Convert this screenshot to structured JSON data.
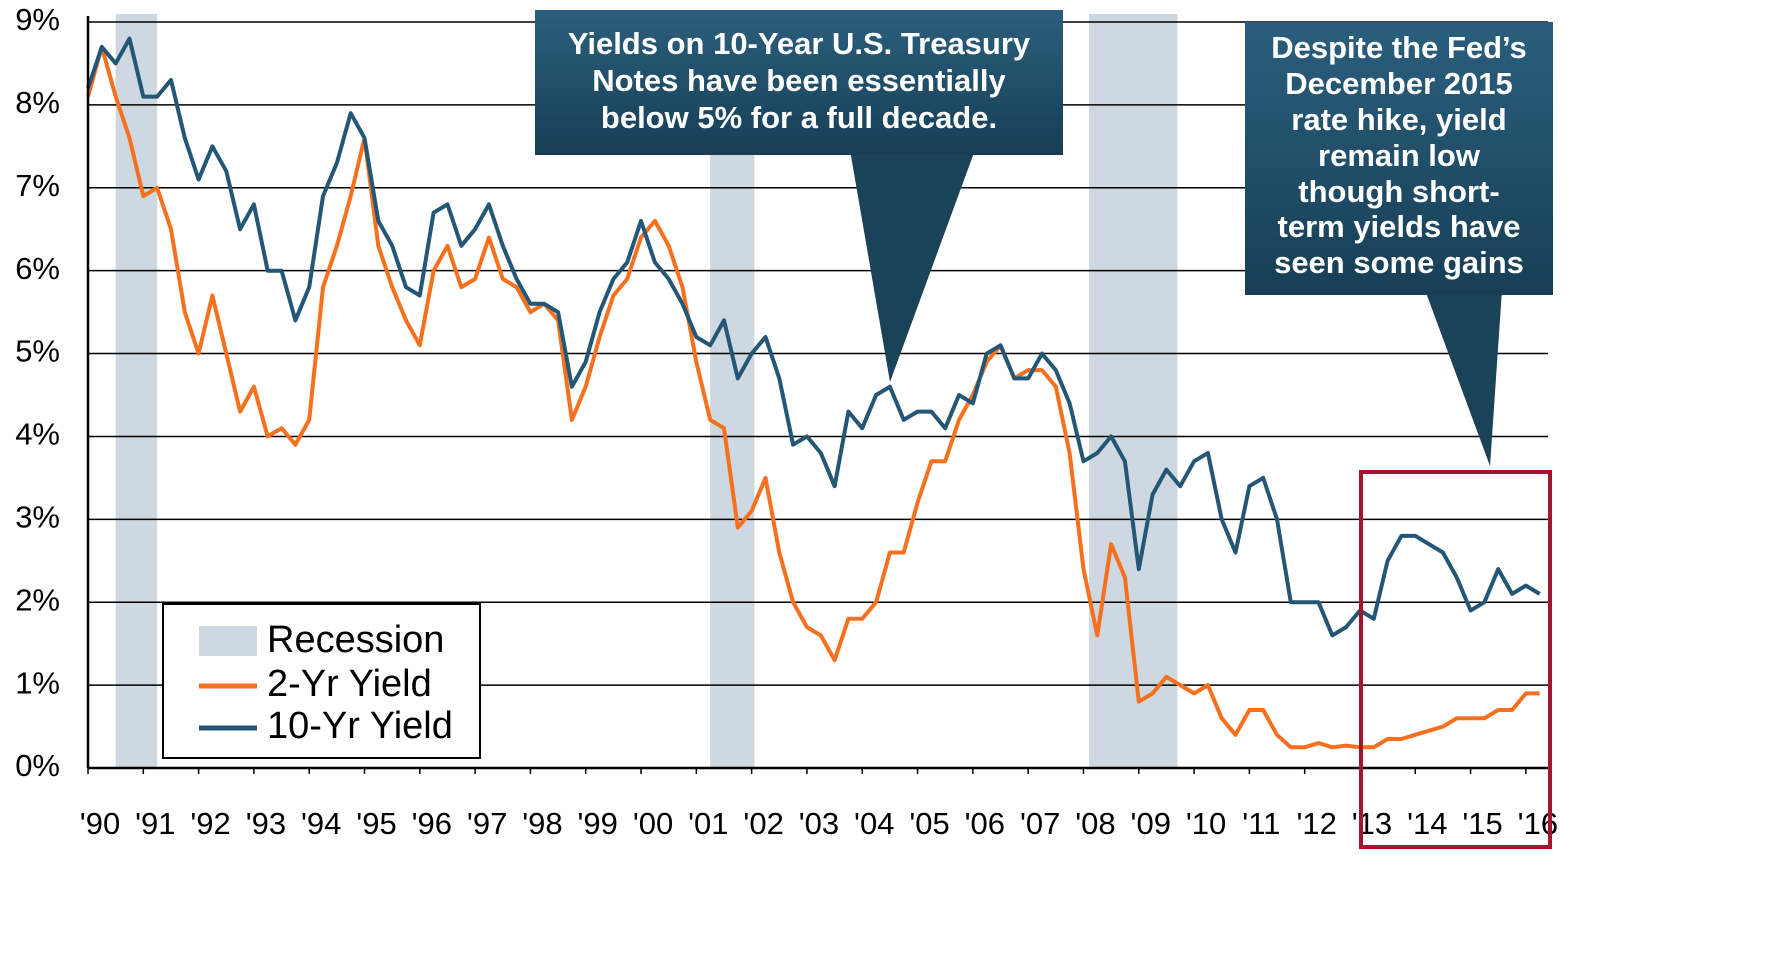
{
  "chart_data": {
    "type": "line",
    "recession_name": "Recession",
    "recessions": [
      [
        1990.5,
        1991.25
      ],
      [
        2001.25,
        2002.05
      ],
      [
        2008.1,
        2009.7
      ]
    ],
    "recession_color": "#cdd8e0",
    "x": [
      1990,
      1990.25,
      1990.5,
      1990.75,
      1991,
      1991.25,
      1991.5,
      1991.75,
      1992,
      1992.25,
      1992.5,
      1992.75,
      1993,
      1993.25,
      1993.5,
      1993.75,
      1994,
      1994.25,
      1994.5,
      1994.75,
      1995,
      1995.25,
      1995.5,
      1995.75,
      1996,
      1996.25,
      1996.5,
      1996.75,
      1997,
      1997.25,
      1997.5,
      1997.75,
      1998,
      1998.25,
      1998.5,
      1998.75,
      1999,
      1999.25,
      1999.5,
      1999.75,
      2000,
      2000.25,
      2000.5,
      2000.75,
      2001,
      2001.25,
      2001.5,
      2001.75,
      2002,
      2002.25,
      2002.5,
      2002.75,
      2003,
      2003.25,
      2003.5,
      2003.75,
      2004,
      2004.25,
      2004.5,
      2004.75,
      2005,
      2005.25,
      2005.5,
      2005.75,
      2006,
      2006.25,
      2006.5,
      2006.75,
      2007,
      2007.25,
      2007.5,
      2007.75,
      2008,
      2008.25,
      2008.5,
      2008.75,
      2009,
      2009.25,
      2009.5,
      2009.75,
      2010,
      2010.25,
      2010.5,
      2010.75,
      2011,
      2011.25,
      2011.5,
      2011.75,
      2012,
      2012.25,
      2012.5,
      2012.75,
      2013,
      2013.25,
      2013.5,
      2013.75,
      2014,
      2014.25,
      2014.5,
      2014.75,
      2015,
      2015.25,
      2015.5,
      2015.75,
      2016,
      2016.25
    ],
    "series": [
      {
        "name": "2-Yr Yield",
        "color": "#f7701e",
        "values": [
          8.1,
          8.7,
          8.1,
          7.6,
          6.9,
          7.0,
          6.5,
          5.5,
          5.0,
          5.7,
          5.0,
          4.3,
          4.6,
          4.0,
          4.1,
          3.9,
          4.2,
          5.8,
          6.3,
          6.9,
          7.6,
          6.3,
          5.8,
          5.4,
          5.1,
          6.0,
          6.3,
          5.8,
          5.9,
          6.4,
          5.9,
          5.8,
          5.5,
          5.6,
          5.4,
          4.2,
          4.6,
          5.2,
          5.7,
          5.9,
          6.4,
          6.6,
          6.3,
          5.8,
          4.9,
          4.2,
          4.1,
          2.9,
          3.1,
          3.5,
          2.6,
          2.0,
          1.7,
          1.6,
          1.3,
          1.8,
          1.8,
          2.0,
          2.6,
          2.6,
          3.2,
          3.7,
          3.7,
          4.2,
          4.5,
          4.9,
          5.1,
          4.7,
          4.8,
          4.8,
          4.6,
          3.8,
          2.4,
          1.6,
          2.7,
          2.3,
          0.8,
          0.9,
          1.1,
          1.0,
          0.9,
          1.0,
          0.6,
          0.4,
          0.7,
          0.7,
          0.4,
          0.25,
          0.25,
          0.3,
          0.25,
          0.27,
          0.25,
          0.25,
          0.35,
          0.35,
          0.4,
          0.45,
          0.5,
          0.6,
          0.6,
          0.6,
          0.7,
          0.7,
          0.9,
          0.9
        ]
      },
      {
        "name": "10-Yr Yield",
        "color": "#245775",
        "values": [
          8.2,
          8.7,
          8.5,
          8.8,
          8.1,
          8.1,
          8.3,
          7.6,
          7.1,
          7.5,
          7.2,
          6.5,
          6.8,
          6.0,
          6.0,
          5.4,
          5.8,
          6.9,
          7.3,
          7.9,
          7.6,
          6.6,
          6.3,
          5.8,
          5.7,
          6.7,
          6.8,
          6.3,
          6.5,
          6.8,
          6.3,
          5.9,
          5.6,
          5.6,
          5.5,
          4.6,
          4.9,
          5.5,
          5.9,
          6.1,
          6.6,
          6.1,
          5.9,
          5.6,
          5.2,
          5.1,
          5.4,
          4.7,
          5.0,
          5.2,
          4.7,
          3.9,
          4.0,
          3.8,
          3.4,
          4.3,
          4.1,
          4.5,
          4.6,
          4.2,
          4.3,
          4.3,
          4.1,
          4.5,
          4.4,
          5.0,
          5.1,
          4.7,
          4.7,
          5.0,
          4.8,
          4.4,
          3.7,
          3.8,
          4.0,
          3.7,
          2.4,
          3.3,
          3.6,
          3.4,
          3.7,
          3.8,
          3.0,
          2.6,
          3.4,
          3.5,
          3.0,
          2.0,
          2.0,
          2.0,
          1.6,
          1.7,
          1.9,
          1.8,
          2.5,
          2.8,
          2.8,
          2.7,
          2.6,
          2.3,
          1.9,
          2.0,
          2.4,
          2.1,
          2.2,
          2.1
        ]
      }
    ],
    "xlim": [
      1990,
      2016.4
    ],
    "ylim": [
      0,
      9
    ],
    "xticks": [
      {
        "value": 1990,
        "label": "'90"
      },
      {
        "value": 1991,
        "label": "'91"
      },
      {
        "value": 1992,
        "label": "'92"
      },
      {
        "value": 1993,
        "label": "'93"
      },
      {
        "value": 1994,
        "label": "'94"
      },
      {
        "value": 1995,
        "label": "'95"
      },
      {
        "value": 1996,
        "label": "'96"
      },
      {
        "value": 1997,
        "label": "'97"
      },
      {
        "value": 1998,
        "label": "'98"
      },
      {
        "value": 1999,
        "label": "'99"
      },
      {
        "value": 2000,
        "label": "'00"
      },
      {
        "value": 2001,
        "label": "'01"
      },
      {
        "value": 2002,
        "label": "'02"
      },
      {
        "value": 2003,
        "label": "'03"
      },
      {
        "value": 2004,
        "label": "'04"
      },
      {
        "value": 2005,
        "label": "'05"
      },
      {
        "value": 2006,
        "label": "'06"
      },
      {
        "value": 2007,
        "label": "'07"
      },
      {
        "value": 2008,
        "label": "'08"
      },
      {
        "value": 2009,
        "label": "'09"
      },
      {
        "value": 2010,
        "label": "'10"
      },
      {
        "value": 2011,
        "label": "'11"
      },
      {
        "value": 2012,
        "label": "'12"
      },
      {
        "value": 2013,
        "label": "'13"
      },
      {
        "value": 2014,
        "label": "'14"
      },
      {
        "value": 2015,
        "label": "'15"
      },
      {
        "value": 2016,
        "label": "'16"
      }
    ],
    "yticks": [
      {
        "value": 0,
        "label": "0%"
      },
      {
        "value": 1,
        "label": "1%"
      },
      {
        "value": 2,
        "label": "2%"
      },
      {
        "value": 3,
        "label": "3%"
      },
      {
        "value": 4,
        "label": "4%"
      },
      {
        "value": 5,
        "label": "5%"
      },
      {
        "value": 6,
        "label": "6%"
      },
      {
        "value": 7,
        "label": "7%"
      },
      {
        "value": 8,
        "label": "8%"
      },
      {
        "value": 9,
        "label": "9%"
      }
    ],
    "grid": true,
    "legend": "bottom-left",
    "annotations": [
      [
        "Yields on 10-Year U.S. Treasury",
        "Notes have been essentially",
        "below 5% for a full decade."
      ],
      [
        "Despite the Fed’s",
        "December 2015",
        "rate hike, yield",
        "remain low",
        "though short-",
        "term yields have",
        "seen some gains"
      ]
    ]
  }
}
